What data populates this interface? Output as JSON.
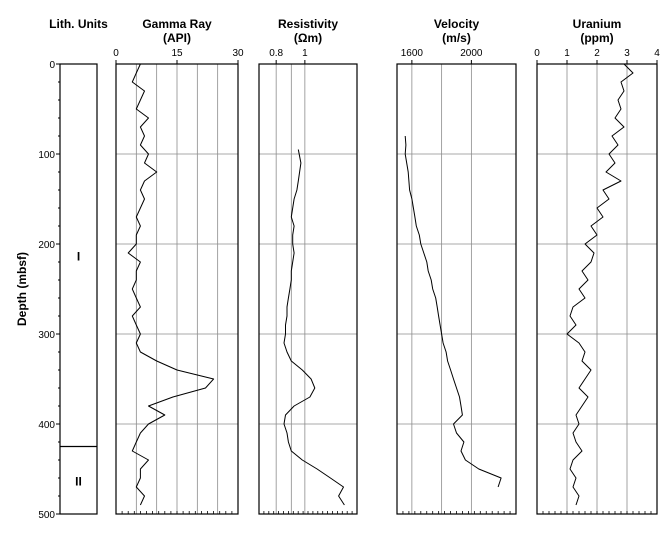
{
  "chart_data": [
    {
      "type": "strip",
      "title": "Lith. Units",
      "subtitle": "",
      "units": [
        {
          "label": "I",
          "top": 0,
          "bottom": 425
        },
        {
          "label": "II",
          "top": 425,
          "bottom": 500
        }
      ]
    },
    {
      "type": "line",
      "title": "Gamma Ray",
      "subtitle": "(API)",
      "xlim": [
        0,
        30
      ],
      "xticks": [
        "0",
        "15",
        "30"
      ],
      "x_tick_values": [
        0,
        15,
        30
      ],
      "grid_values": [
        5,
        10,
        15,
        20,
        25
      ],
      "series": [
        {
          "depth": [
            0,
            10,
            20,
            30,
            40,
            50,
            60,
            70,
            80,
            90,
            100,
            110,
            120,
            130,
            140,
            150,
            160,
            170,
            180,
            190,
            200,
            210,
            220,
            230,
            240,
            250,
            260,
            270,
            280,
            290,
            300,
            310,
            320,
            330,
            340,
            350,
            360,
            370,
            380,
            390,
            400,
            410,
            420,
            430,
            440,
            450,
            460,
            470,
            480,
            490
          ],
          "values": [
            6,
            5,
            4,
            7,
            6,
            5,
            8,
            6,
            7,
            6,
            8,
            7,
            10,
            7,
            6,
            7,
            6,
            5,
            6,
            5,
            5,
            3,
            6,
            5,
            5,
            4,
            5,
            6,
            4,
            5,
            6,
            5,
            6,
            10,
            15,
            24,
            22,
            14,
            8,
            12,
            8,
            6,
            5,
            4,
            8,
            6,
            6,
            5,
            7,
            6
          ]
        }
      ]
    },
    {
      "type": "line",
      "title": "Resistivity",
      "subtitle": "(Ωm)",
      "xscale": "log",
      "xlim": [
        0.7,
        1.5
      ],
      "xticks": [
        "0.8",
        "1"
      ],
      "x_tick_values": [
        0.8,
        1
      ],
      "grid_values": [
        0.8,
        0.9,
        1
      ],
      "series": [
        {
          "depth": [
            95,
            110,
            120,
            130,
            140,
            150,
            160,
            170,
            180,
            190,
            200,
            210,
            220,
            230,
            240,
            250,
            260,
            270,
            280,
            290,
            300,
            310,
            320,
            330,
            340,
            350,
            360,
            370,
            380,
            390,
            400,
            410,
            420,
            430,
            440,
            450,
            460,
            470,
            480,
            490
          ],
          "values": [
            0.95,
            0.97,
            0.96,
            0.95,
            0.94,
            0.92,
            0.91,
            0.9,
            0.92,
            0.91,
            0.91,
            0.92,
            0.91,
            0.9,
            0.9,
            0.89,
            0.88,
            0.87,
            0.87,
            0.86,
            0.86,
            0.85,
            0.87,
            0.9,
            0.98,
            1.05,
            1.08,
            1.04,
            0.92,
            0.86,
            0.85,
            0.87,
            0.88,
            0.9,
            0.98,
            1.1,
            1.22,
            1.35,
            1.3,
            1.36
          ]
        }
      ]
    },
    {
      "type": "line",
      "title": "Velocity",
      "subtitle": "(m/s)",
      "xlim": [
        1500,
        2300
      ],
      "xticks": [
        "1600",
        "2000"
      ],
      "x_tick_values": [
        1600,
        2000
      ],
      "grid_values": [
        1600,
        1800,
        2000
      ],
      "series": [
        {
          "depth": [
            80,
            90,
            100,
            110,
            120,
            130,
            140,
            150,
            160,
            170,
            180,
            190,
            200,
            210,
            220,
            230,
            240,
            250,
            260,
            270,
            280,
            290,
            300,
            310,
            320,
            330,
            340,
            350,
            360,
            370,
            380,
            390,
            400,
            410,
            420,
            430,
            440,
            450,
            460,
            470
          ],
          "values": [
            1555,
            1560,
            1555,
            1565,
            1575,
            1580,
            1585,
            1600,
            1610,
            1620,
            1630,
            1650,
            1660,
            1680,
            1700,
            1710,
            1730,
            1740,
            1760,
            1770,
            1780,
            1790,
            1800,
            1810,
            1830,
            1840,
            1860,
            1880,
            1900,
            1920,
            1930,
            1940,
            1880,
            1900,
            1950,
            1930,
            1960,
            2050,
            2200,
            2180
          ]
        }
      ]
    },
    {
      "type": "line",
      "title": "Uranium",
      "subtitle": "(ppm)",
      "xlim": [
        0,
        4
      ],
      "xticks": [
        "0",
        "1",
        "2",
        "3",
        "4"
      ],
      "x_tick_values": [
        0,
        1,
        2,
        3,
        4
      ],
      "grid_values": [
        1,
        2,
        3
      ],
      "series": [
        {
          "depth": [
            0,
            10,
            20,
            30,
            40,
            50,
            60,
            70,
            80,
            90,
            100,
            110,
            120,
            130,
            140,
            150,
            160,
            170,
            180,
            190,
            200,
            210,
            220,
            230,
            240,
            250,
            260,
            270,
            280,
            290,
            300,
            310,
            320,
            330,
            340,
            350,
            360,
            370,
            380,
            390,
            400,
            410,
            420,
            430,
            440,
            450,
            460,
            470,
            480,
            490
          ],
          "values": [
            2.9,
            3.2,
            2.8,
            2.9,
            2.7,
            2.8,
            2.6,
            2.9,
            2.5,
            2.7,
            2.4,
            2.6,
            2.3,
            2.8,
            2.2,
            2.4,
            2.0,
            2.2,
            1.8,
            2.0,
            1.6,
            1.9,
            1.8,
            1.5,
            1.7,
            1.4,
            1.6,
            1.2,
            1.1,
            1.3,
            1.0,
            1.4,
            1.6,
            1.5,
            1.8,
            1.6,
            1.4,
            1.7,
            1.5,
            1.3,
            1.4,
            1.2,
            1.3,
            1.5,
            1.2,
            1.1,
            1.3,
            1.2,
            1.4,
            1.3
          ]
        }
      ]
    }
  ],
  "depth_axis": {
    "label": "Depth (mbsf)",
    "ylim": [
      0,
      500
    ],
    "ticks": [
      "0",
      "100",
      "200",
      "300",
      "400",
      "500"
    ],
    "tick_values": [
      0,
      100,
      200,
      300,
      400,
      500
    ]
  },
  "colors": {
    "line": "#000000",
    "grid": "#8c8c8c",
    "frame": "#000000"
  }
}
